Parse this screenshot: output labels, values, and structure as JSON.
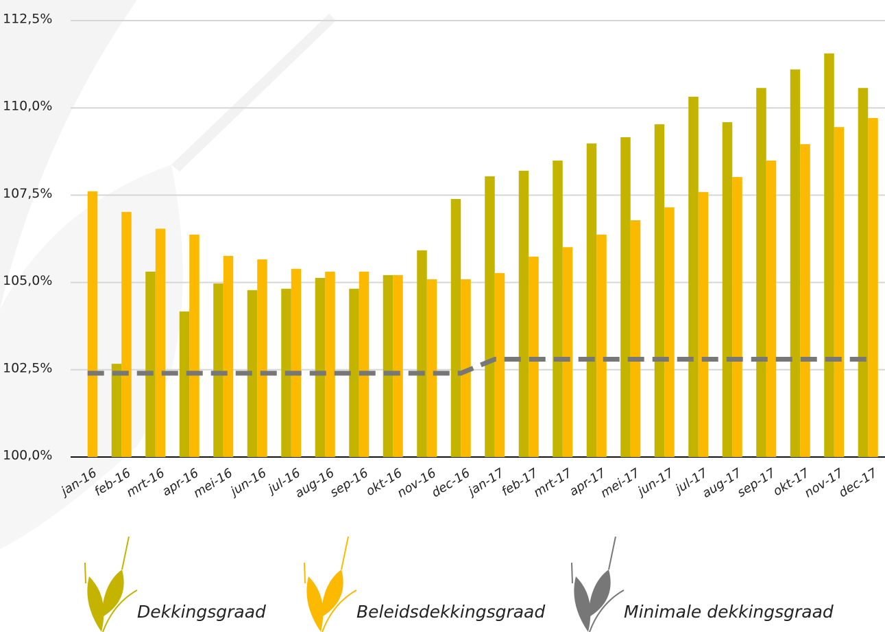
{
  "chart_data": {
    "type": "bar",
    "categories": [
      "jan-16",
      "feb-16",
      "mrt-16",
      "apr-16",
      "mei-16",
      "jun-16",
      "jul-16",
      "aug-16",
      "sep-16",
      "okt-16",
      "nov-16",
      "dec-16",
      "jan-17",
      "feb-17",
      "mrt-17",
      "apr-17",
      "mei-17",
      "jun-17",
      "jul-17",
      "aug-17",
      "sep-17",
      "okt-17",
      "nov-17",
      "dec-17"
    ],
    "series": [
      {
        "name": "Dekkingsgraad",
        "color": "#c4b400",
        "type": "bar",
        "values": [
          null,
          102.67,
          105.31,
          104.17,
          104.97,
          104.78,
          104.82,
          105.13,
          104.82,
          105.21,
          105.92,
          107.39,
          108.04,
          108.2,
          108.49,
          108.98,
          109.16,
          109.53,
          110.32,
          109.59,
          110.57,
          111.1,
          111.56,
          110.57
        ]
      },
      {
        "name": "Beleidsdekkingsgraad",
        "color": "#fbb900",
        "type": "bar",
        "values": [
          107.61,
          107.02,
          106.54,
          106.37,
          105.76,
          105.66,
          105.39,
          105.31,
          105.31,
          105.21,
          105.09,
          105.09,
          105.27,
          105.74,
          106.01,
          106.37,
          106.78,
          107.15,
          107.59,
          108.02,
          108.49,
          108.96,
          109.45,
          109.71
        ]
      },
      {
        "name": "Minimale dekkingsgraad",
        "color": "#777777",
        "type": "line",
        "values": [
          102.4,
          102.4,
          102.4,
          102.4,
          102.4,
          102.4,
          102.4,
          102.4,
          102.4,
          102.4,
          102.4,
          102.4,
          102.8,
          102.8,
          102.8,
          102.8,
          102.8,
          102.8,
          102.8,
          102.8,
          102.8,
          102.8,
          102.8,
          102.8
        ]
      }
    ],
    "ylim": [
      100,
      112.5
    ],
    "yticks": [
      {
        "value": 100,
        "label": "100,0%"
      },
      {
        "value": 102.5,
        "label": "102,5%"
      },
      {
        "value": 105,
        "label": "105,0%"
      },
      {
        "value": 107.5,
        "label": "107,5%"
      },
      {
        "value": 110,
        "label": "110,0%"
      },
      {
        "value": 112.5,
        "label": "112,5%"
      }
    ],
    "grid": true
  }
}
